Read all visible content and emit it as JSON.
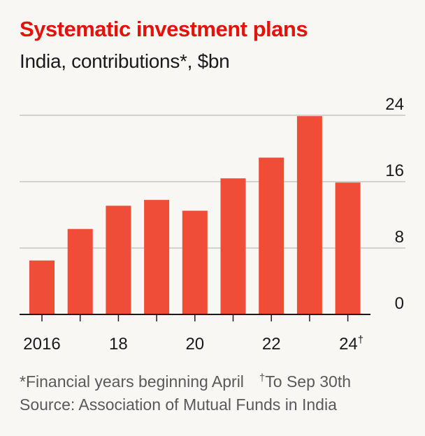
{
  "header": {
    "title": "Systematic investment plans",
    "subtitle": "India, contributions*, $bn"
  },
  "colors": {
    "bar": "#f04d38",
    "title": "#e3120b",
    "grid": "#c8c6bf",
    "axis": "#1a1a1a"
  },
  "chart_data": {
    "type": "bar",
    "title": "Systematic investment plans",
    "subtitle": "India, contributions*, $bn",
    "categories": [
      "2016",
      "2017",
      "2018",
      "2019",
      "2020",
      "2021",
      "2022",
      "2023",
      "2024"
    ],
    "values": [
      6.5,
      10.3,
      13.1,
      13.8,
      12.5,
      16.4,
      18.9,
      23.9,
      15.9
    ],
    "x_tick_labels": [
      {
        "category": "2016",
        "label": "2016",
        "sup": ""
      },
      {
        "category": "2018",
        "label": "18",
        "sup": ""
      },
      {
        "category": "2020",
        "label": "20",
        "sup": ""
      },
      {
        "category": "2022",
        "label": "22",
        "sup": ""
      },
      {
        "category": "2024",
        "label": "24",
        "sup": "†"
      }
    ],
    "y_ticks": [
      0,
      8,
      16,
      24
    ],
    "ylim": [
      0,
      24
    ],
    "y_axis_side": "right",
    "grid": true,
    "xlabel": "",
    "ylabel": ""
  },
  "footnotes": {
    "note_star": "*Financial years beginning April",
    "note_dagger_mark": "†",
    "note_dagger": "To Sep 30th",
    "source": "Source: Association of Mutual Funds in India"
  }
}
